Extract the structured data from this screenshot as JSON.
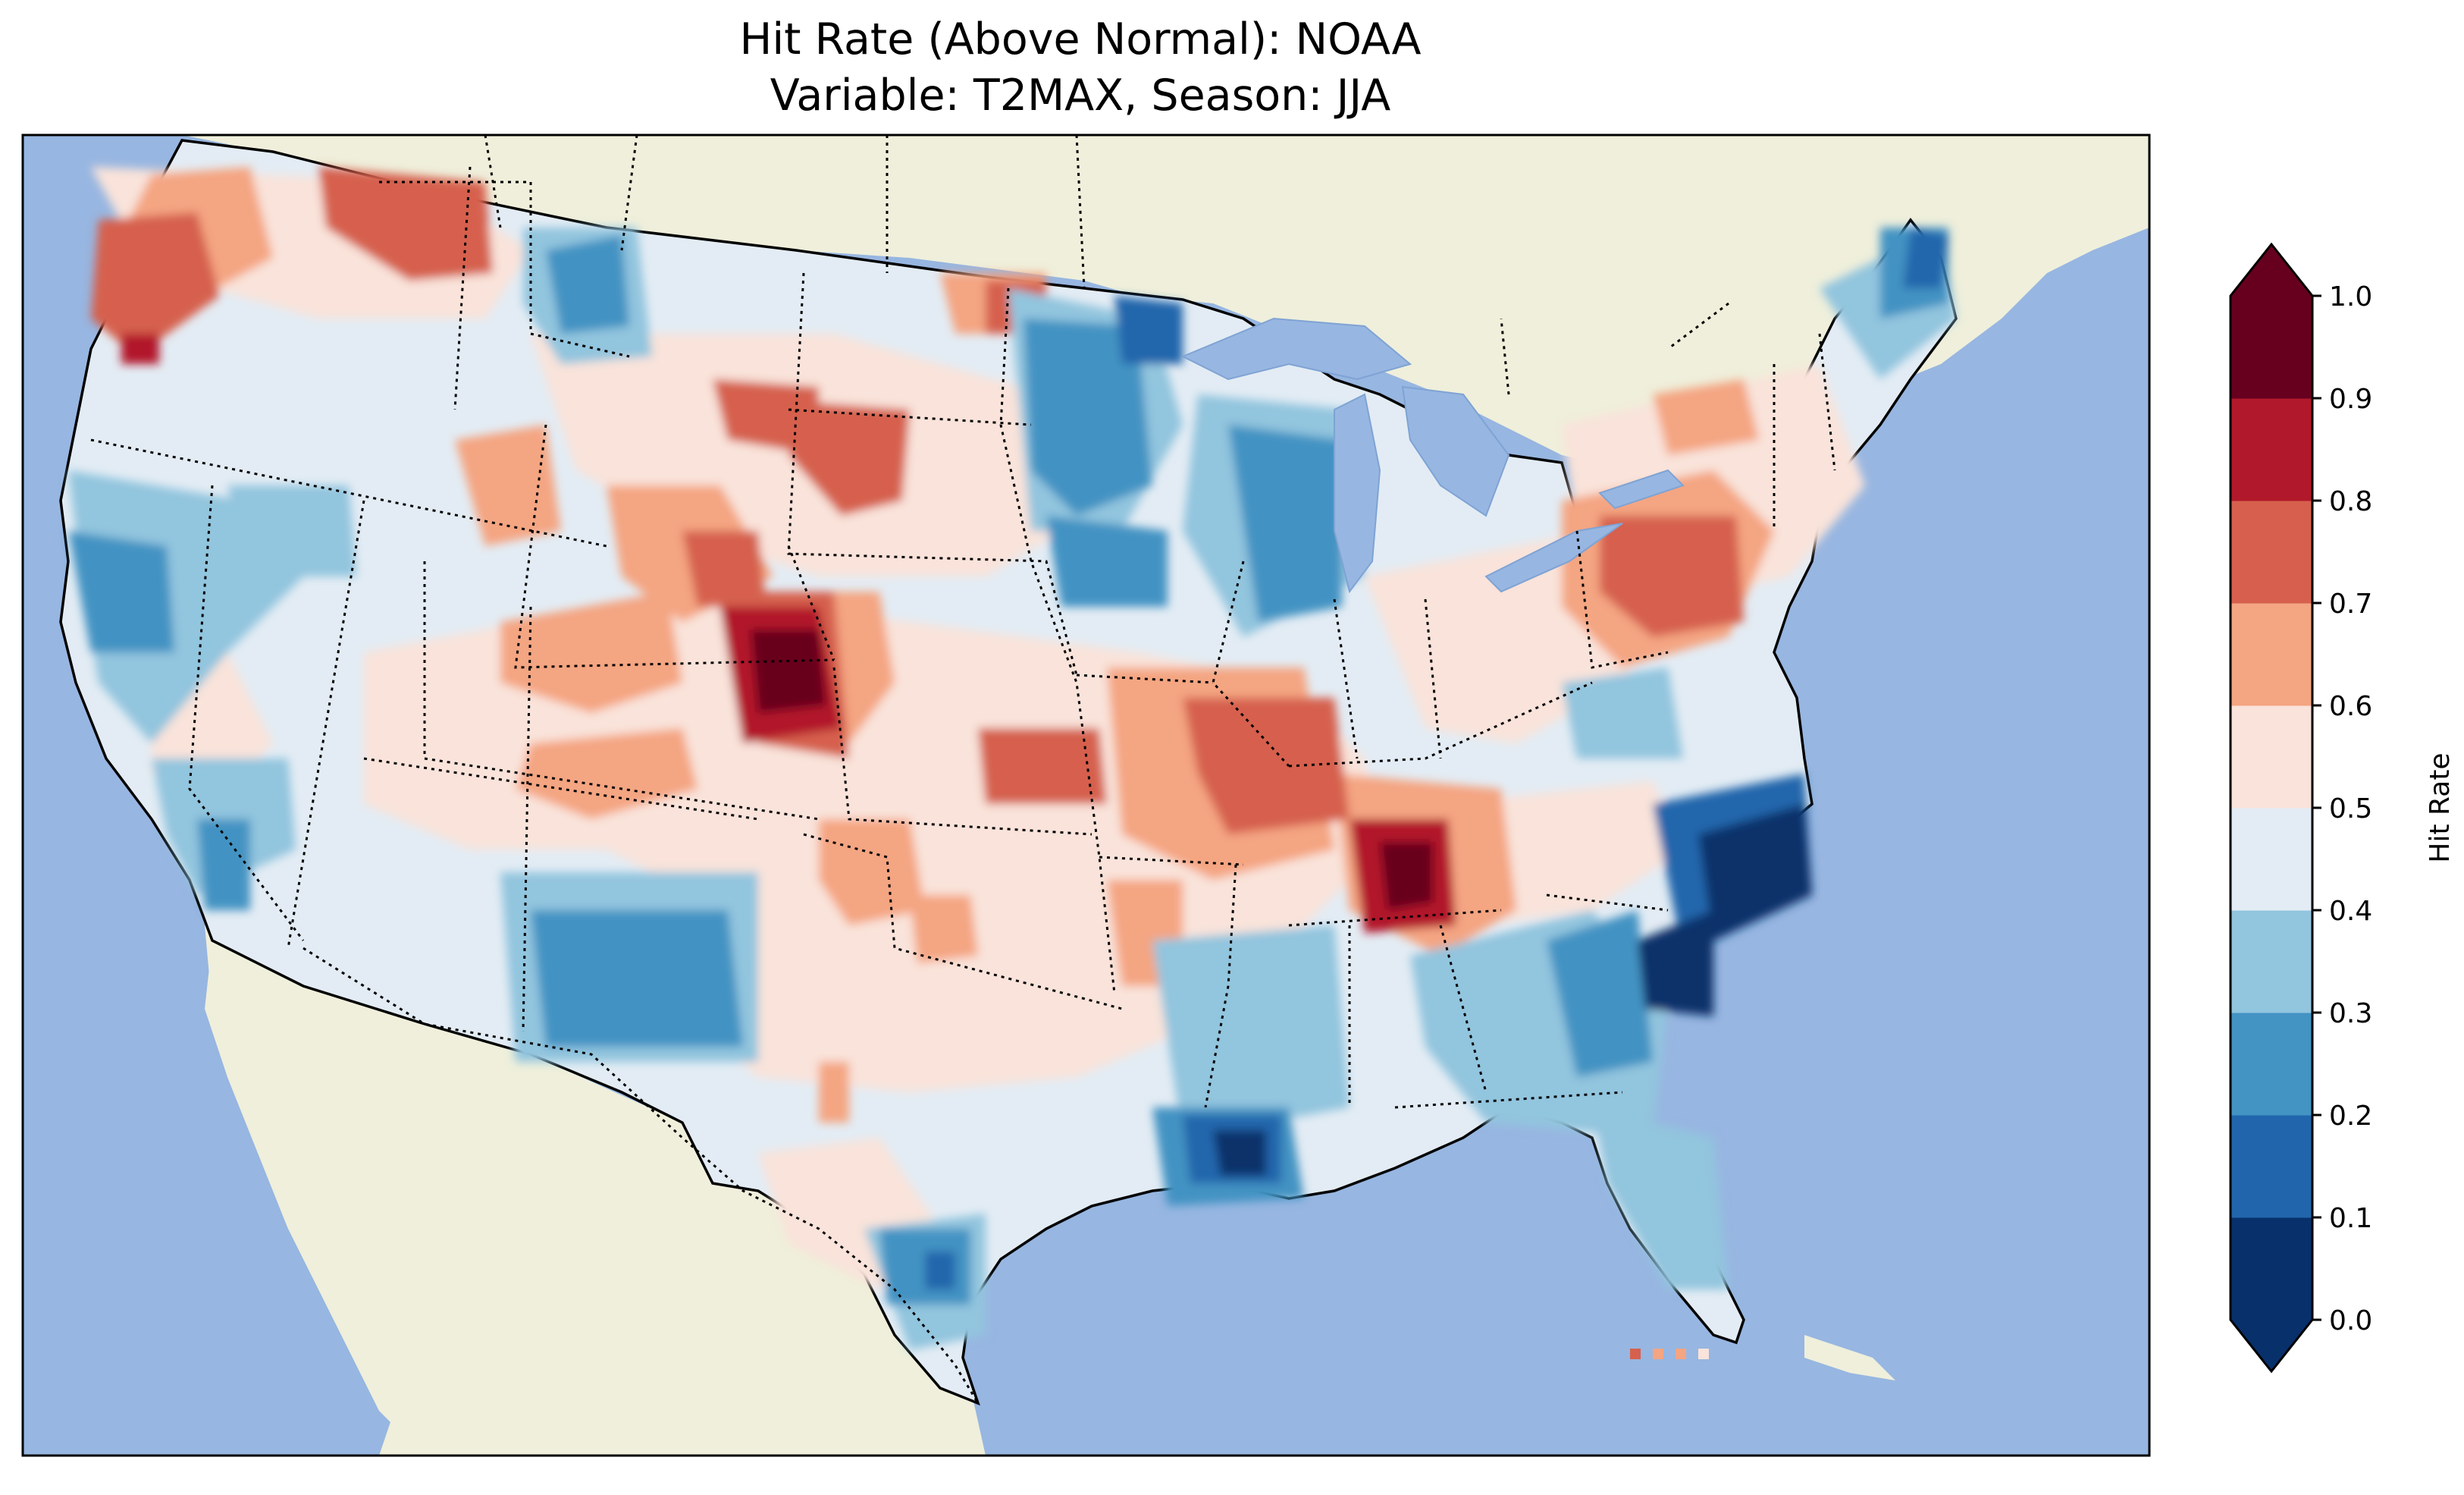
{
  "title": {
    "line1": "Hit Rate (Above Normal): NOAA",
    "line2": "Variable: T2MAX, Season: JJA"
  },
  "map": {
    "region": "Contiguous United States",
    "colors": {
      "ocean": "#97b6e1",
      "land": "#efefdb"
    },
    "features": [
      "coastlines",
      "state-borders",
      "country-borders",
      "great-lakes"
    ]
  },
  "colorbar": {
    "label": "Hit Rate",
    "ticks": [
      "0.0",
      "0.1",
      "0.2",
      "0.3",
      "0.4",
      "0.5",
      "0.6",
      "0.7",
      "0.8",
      "0.9",
      "1.0"
    ],
    "bins": [
      {
        "range": "0.0-0.1",
        "color": "#08306b"
      },
      {
        "range": "0.1-0.2",
        "color": "#2166ac"
      },
      {
        "range": "0.2-0.3",
        "color": "#4393c3"
      },
      {
        "range": "0.3-0.4",
        "color": "#92c5de"
      },
      {
        "range": "0.4-0.5",
        "color": "#e3ecf4"
      },
      {
        "range": "0.5-0.6",
        "color": "#f9e3da"
      },
      {
        "range": "0.6-0.7",
        "color": "#f4a582"
      },
      {
        "range": "0.7-0.8",
        "color": "#d6604d"
      },
      {
        "range": "0.8-0.9",
        "color": "#b2182b"
      },
      {
        "range": "0.9-1.0",
        "color": "#67001f"
      }
    ],
    "extend_low_color": "#08306b",
    "extend_high_color": "#67001f"
  }
}
